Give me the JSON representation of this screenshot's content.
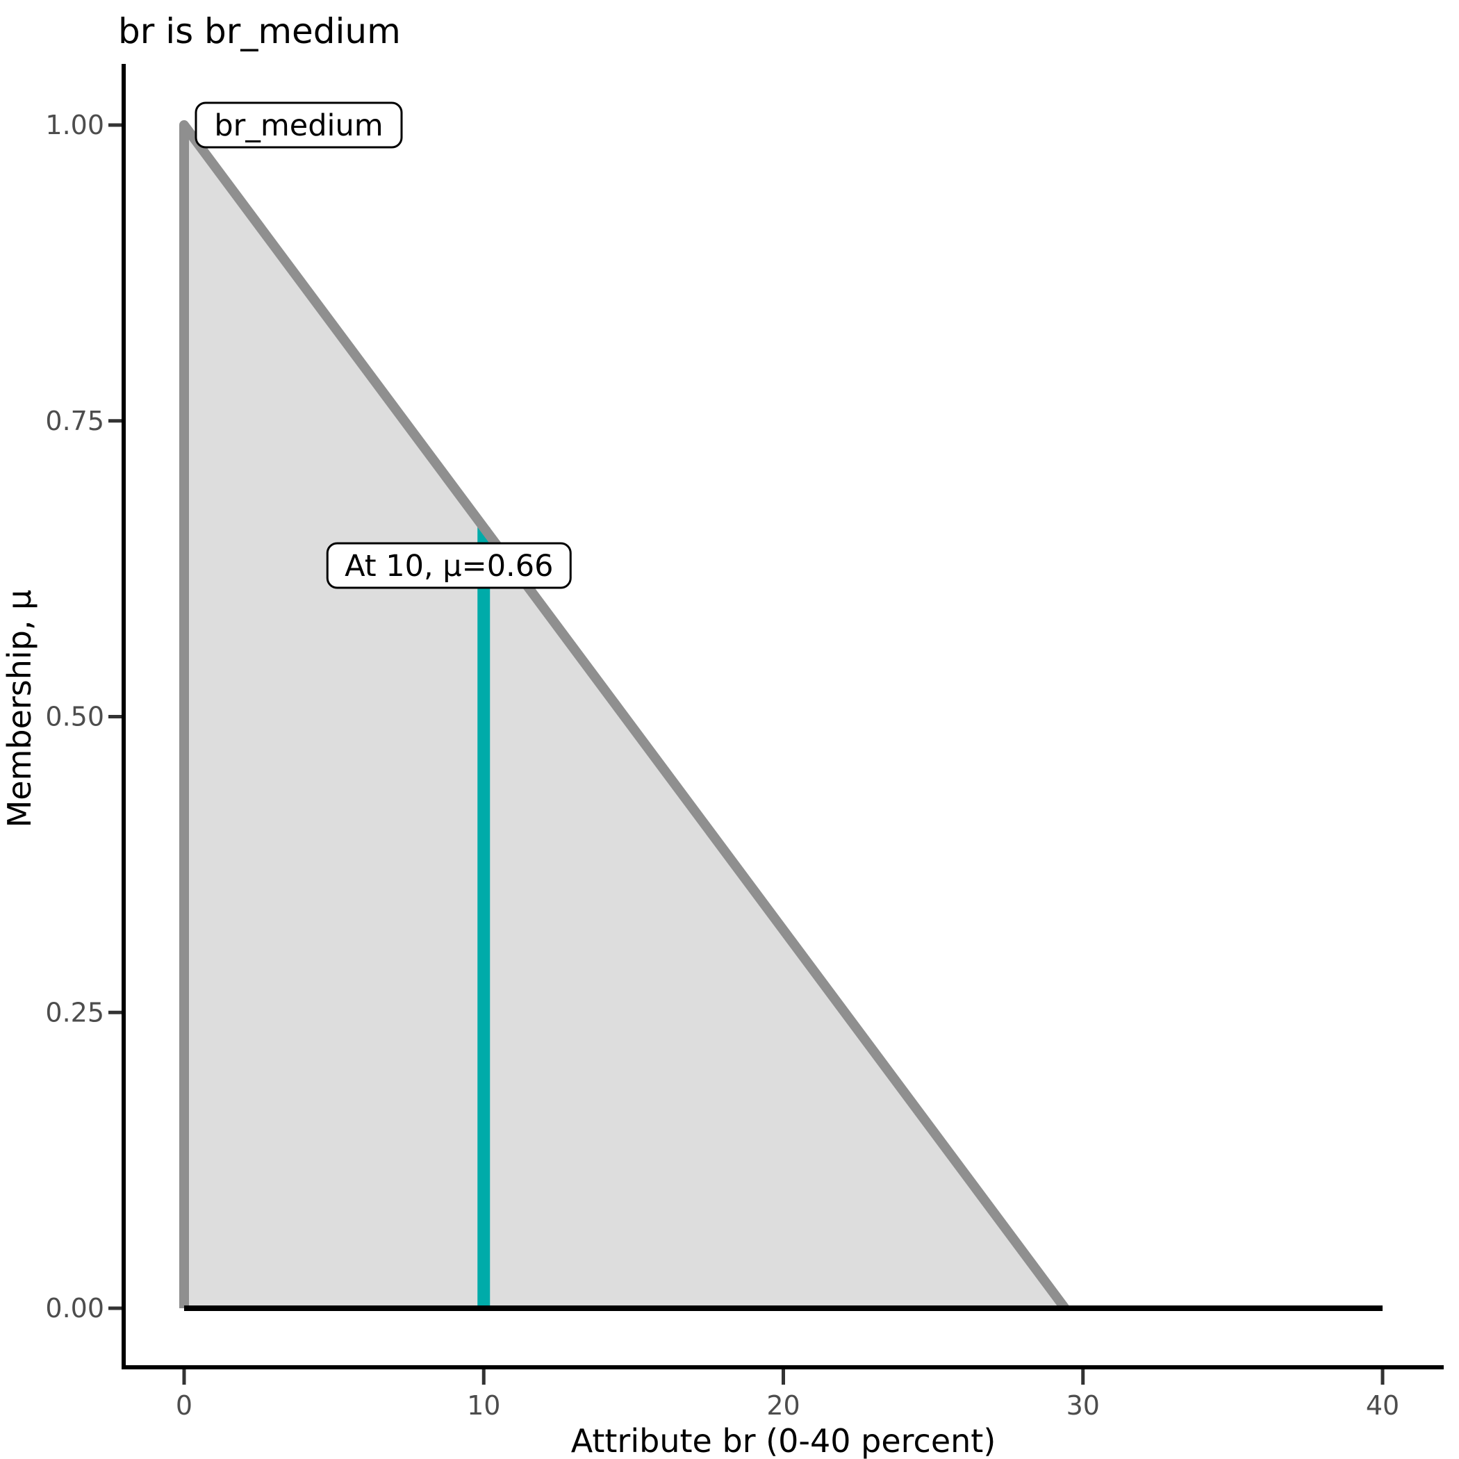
{
  "chart_data": {
    "type": "area",
    "title": "br is br_medium",
    "xlabel": "Attribute br (0-40 percent)",
    "ylabel": "Membership, μ",
    "xlim": [
      0,
      40
    ],
    "ylim": [
      0,
      1
    ],
    "grid": false,
    "legend": "none",
    "x_ticks": [
      {
        "value": 0,
        "label": "0"
      },
      {
        "value": 10,
        "label": "10"
      },
      {
        "value": 20,
        "label": "20"
      },
      {
        "value": 30,
        "label": "30"
      },
      {
        "value": 40,
        "label": "40"
      }
    ],
    "y_ticks": [
      {
        "value": 0.0,
        "label": "0.00"
      },
      {
        "value": 0.25,
        "label": "0.25"
      },
      {
        "value": 0.5,
        "label": "0.50"
      },
      {
        "value": 0.75,
        "label": "0.75"
      },
      {
        "value": 1.0,
        "label": "1.00"
      }
    ],
    "series": [
      {
        "name": "br_medium",
        "kind": "fuzzy_membership_triangle",
        "points": [
          [
            0,
            0
          ],
          [
            0,
            1
          ],
          [
            29.4,
            0
          ]
        ],
        "fill_color": "#DDDDDD",
        "line_color": "#8F8F8F"
      }
    ],
    "baseline": {
      "mu": 0,
      "x_from": 0,
      "x_to": 40,
      "color": "#000000"
    },
    "marker": {
      "x": 10,
      "mu": 0.66,
      "label": "At 10, μ=0.66",
      "color": "#00ABA9"
    },
    "set_label": {
      "text": "br_medium"
    },
    "colors": {
      "axis_line": "#000000",
      "tick_mark": "#333333",
      "tick_text": "#4D4D4D",
      "title_text": "#000000"
    }
  }
}
